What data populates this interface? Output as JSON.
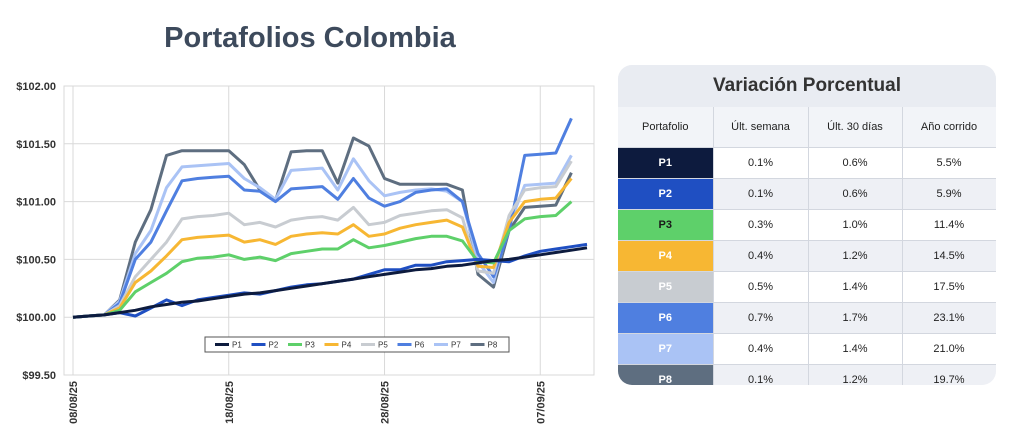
{
  "chart_data": {
    "type": "line",
    "title": "Portafolios Colombia",
    "ylim": [
      99.5,
      102.0
    ],
    "yticks": [
      "$99.50",
      "$100.00",
      "$100.50",
      "$101.00",
      "$101.50",
      "$102.00"
    ],
    "ytick_values": [
      99.5,
      100.0,
      100.5,
      101.0,
      101.5,
      102.0
    ],
    "xtick_labels": [
      "08/08/25",
      "18/08/25",
      "28/08/25",
      "07/09/25"
    ],
    "xtick_index": [
      0,
      10,
      20,
      30
    ],
    "grid": true,
    "legend_position": "bottom-inside",
    "series": [
      {
        "name": "P1",
        "color": "#0d1b3e",
        "values": [
          100.0,
          100.01,
          100.02,
          100.04,
          100.06,
          100.09,
          100.11,
          100.13,
          100.14,
          100.16,
          100.18,
          100.2,
          100.21,
          100.23,
          100.25,
          100.27,
          100.29,
          100.31,
          100.33,
          100.35,
          100.37,
          100.39,
          100.41,
          100.42,
          100.44,
          100.45,
          100.47,
          100.49,
          100.5,
          100.52,
          100.54,
          100.56,
          100.58,
          100.6
        ]
      },
      {
        "name": "P2",
        "color": "#1f4fc2",
        "values": [
          100.0,
          100.01,
          100.02,
          100.04,
          100.01,
          100.08,
          100.15,
          100.1,
          100.15,
          100.17,
          100.19,
          100.21,
          100.2,
          100.23,
          100.26,
          100.28,
          100.29,
          100.31,
          100.33,
          100.37,
          100.41,
          100.41,
          100.45,
          100.45,
          100.48,
          100.49,
          100.5,
          100.49,
          100.48,
          100.53,
          100.57,
          100.59,
          100.61,
          100.63
        ]
      },
      {
        "name": "P3",
        "color": "#5ed06a",
        "values": [
          100.0,
          100.01,
          100.02,
          100.06,
          100.22,
          100.3,
          100.38,
          100.48,
          100.51,
          100.52,
          100.54,
          100.5,
          100.52,
          100.49,
          100.55,
          100.57,
          100.59,
          100.59,
          100.67,
          100.6,
          100.62,
          100.65,
          100.68,
          100.7,
          100.7,
          100.66,
          100.48,
          100.47,
          100.75,
          100.85,
          100.87,
          100.88,
          101.0
        ]
      },
      {
        "name": "P4",
        "color": "#f7b733",
        "values": [
          100.0,
          100.01,
          100.02,
          100.08,
          100.3,
          100.4,
          100.53,
          100.67,
          100.69,
          100.7,
          100.71,
          100.65,
          100.67,
          100.63,
          100.7,
          100.72,
          100.73,
          100.72,
          100.8,
          100.7,
          100.72,
          100.77,
          100.8,
          100.82,
          100.84,
          100.78,
          100.44,
          100.43,
          100.82,
          101.0,
          101.02,
          101.03,
          101.2
        ]
      },
      {
        "name": "P5",
        "color": "#c8ccd1",
        "values": [
          100.0,
          100.01,
          100.02,
          100.1,
          100.35,
          100.5,
          100.65,
          100.85,
          100.87,
          100.88,
          100.9,
          100.8,
          100.82,
          100.78,
          100.84,
          100.86,
          100.87,
          100.84,
          100.95,
          100.8,
          100.82,
          100.88,
          100.9,
          100.92,
          100.93,
          100.86,
          100.4,
          100.38,
          100.88,
          101.1,
          101.12,
          101.13,
          101.35
        ]
      },
      {
        "name": "P6",
        "color": "#4f7fe0",
        "values": [
          100.0,
          100.01,
          100.02,
          100.12,
          100.5,
          100.65,
          100.92,
          101.18,
          101.2,
          101.21,
          101.22,
          101.1,
          101.09,
          101.0,
          101.11,
          101.12,
          101.13,
          101.02,
          101.2,
          101.03,
          100.96,
          101.0,
          101.08,
          101.1,
          101.11,
          101.0,
          100.55,
          100.35,
          100.75,
          101.4,
          101.41,
          101.42,
          101.72
        ]
      },
      {
        "name": "P7",
        "color": "#aac3f5",
        "values": [
          100.0,
          100.01,
          100.02,
          100.14,
          100.55,
          100.75,
          101.12,
          101.3,
          101.31,
          101.32,
          101.33,
          101.2,
          101.12,
          101.02,
          101.27,
          101.28,
          101.29,
          101.1,
          101.37,
          101.18,
          101.05,
          101.08,
          101.1,
          101.11,
          101.09,
          101.0,
          100.48,
          100.3,
          100.8,
          101.14,
          101.15,
          101.16,
          101.4
        ]
      },
      {
        "name": "P8",
        "color": "#5e6e80",
        "values": [
          100.0,
          100.01,
          100.02,
          100.15,
          100.65,
          100.93,
          101.4,
          101.44,
          101.44,
          101.44,
          101.44,
          101.32,
          101.1,
          101.01,
          101.43,
          101.44,
          101.44,
          101.16,
          101.55,
          101.48,
          101.2,
          101.15,
          101.15,
          101.15,
          101.15,
          101.1,
          100.37,
          100.26,
          100.75,
          100.95,
          100.96,
          100.97,
          101.25
        ]
      }
    ]
  },
  "table": {
    "title": "Variación Porcentual",
    "headers": [
      "Portafolio",
      "Últ. semana",
      "Últ. 30 días",
      "Año corrido"
    ],
    "rows": [
      {
        "name": "P1",
        "color": "#0d1b3e",
        "text_color": "#ffffff",
        "week": "0.1%",
        "d30": "0.6%",
        "ytd": "5.5%"
      },
      {
        "name": "P2",
        "color": "#1f4fc2",
        "text_color": "#ffffff",
        "week": "0.1%",
        "d30": "0.6%",
        "ytd": "5.9%"
      },
      {
        "name": "P3",
        "color": "#5ed06a",
        "text_color": "#1a1a1a",
        "week": "0.3%",
        "d30": "1.0%",
        "ytd": "11.4%"
      },
      {
        "name": "P4",
        "color": "#f7b733",
        "text_color": "#ffffff",
        "week": "0.4%",
        "d30": "1.2%",
        "ytd": "14.5%"
      },
      {
        "name": "P5",
        "color": "#c8ccd1",
        "text_color": "#ffffff",
        "week": "0.5%",
        "d30": "1.4%",
        "ytd": "17.5%"
      },
      {
        "name": "P6",
        "color": "#4f7fe0",
        "text_color": "#ffffff",
        "week": "0.7%",
        "d30": "1.7%",
        "ytd": "23.1%"
      },
      {
        "name": "P7",
        "color": "#aac3f5",
        "text_color": "#ffffff",
        "week": "0.4%",
        "d30": "1.4%",
        "ytd": "21.0%"
      },
      {
        "name": "P8",
        "color": "#5e6e80",
        "text_color": "#ffffff",
        "week": "0.1%",
        "d30": "1.2%",
        "ytd": "19.7%"
      }
    ]
  }
}
